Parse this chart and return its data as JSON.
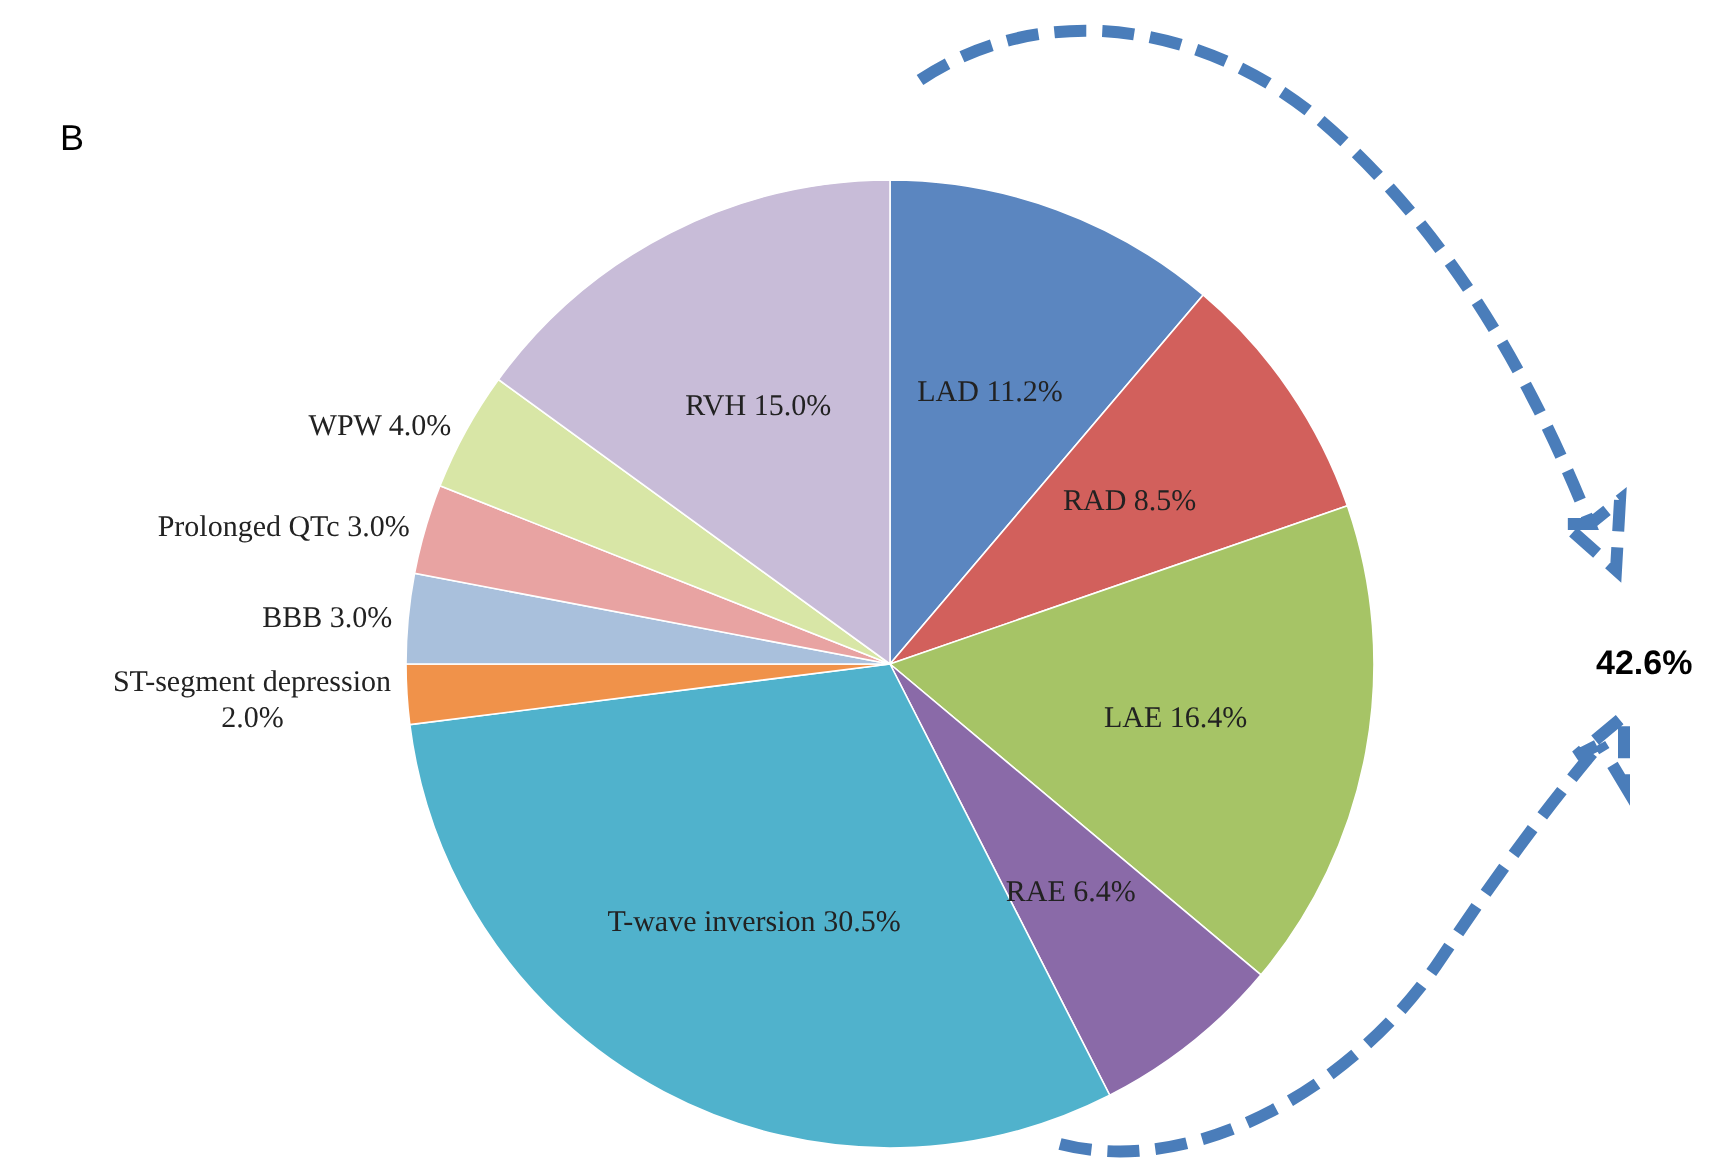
{
  "chart_data": {
    "type": "pie",
    "categories": [
      "LAD",
      "RAD",
      "LAE",
      "RAE",
      "T-wave inversion",
      "ST-segment depression",
      "BBB",
      "Prolonged QTc",
      "WPW",
      "RVH"
    ],
    "values": [
      11.2,
      8.5,
      16.4,
      6.4,
      30.5,
      2.0,
      3.0,
      3.0,
      4.0,
      15.0
    ],
    "value_labels": [
      "11.2%",
      "8.5%",
      "16.4%",
      "6.4%",
      "30.5%",
      "2.0%",
      "3.0%",
      "3.0%",
      "4.0%",
      "15.0%"
    ],
    "colors": [
      "#5b86c0",
      "#d2605c",
      "#a6c466",
      "#8a6aa8",
      "#50b2cc",
      "#f0924a",
      "#a9c0dc",
      "#e8a3a2",
      "#d8e6a6",
      "#c8bcd8"
    ],
    "annotations": [
      "B",
      "42.6%"
    ]
  }
}
